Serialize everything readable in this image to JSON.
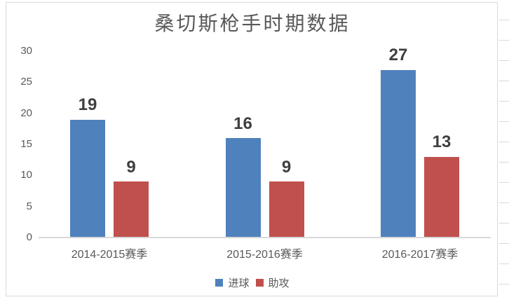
{
  "chart_data": {
    "type": "bar",
    "title": "桑切斯枪手时期数据",
    "categories": [
      "2014-2015赛季",
      "2015-2016赛季",
      "2016-2017赛季"
    ],
    "series": [
      {
        "name": "进球",
        "color": "#4F81BD",
        "values": [
          19,
          16,
          27
        ]
      },
      {
        "name": "助攻",
        "color": "#C0504D",
        "values": [
          9,
          9,
          13
        ]
      }
    ],
    "xlabel": "",
    "ylabel": "",
    "ylim": [
      0,
      30
    ],
    "yticks": [
      30,
      25,
      20,
      15,
      10,
      5,
      0
    ],
    "grid": false,
    "data_labels": true,
    "legend_position": "bottom"
  },
  "colors": {
    "text": "#595959",
    "data_label": "#3f3f3f",
    "axis_line": "#d8d8d8",
    "frame_border": "#d9d9d9"
  }
}
